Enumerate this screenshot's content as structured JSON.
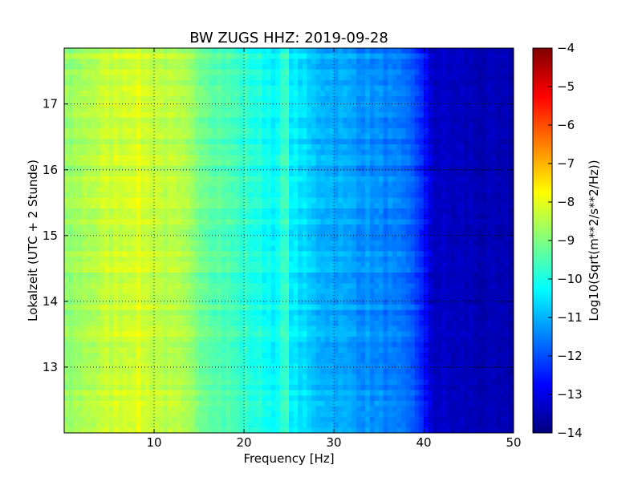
{
  "chart_data": {
    "type": "heatmap",
    "title": "BW ZUGS HHZ: 2019-09-28",
    "xlabel": "Frequency [Hz]",
    "ylabel": "Lokalzeit (UTC + 2 Stunde)",
    "xlim": [
      0,
      50
    ],
    "ylim": [
      17.85,
      12.0
    ],
    "y_inverted": true,
    "grid": true,
    "xticks": [
      10,
      20,
      30,
      40,
      50
    ],
    "yticks": [
      13,
      14,
      15,
      16,
      17
    ],
    "colorbar": {
      "label": "Log10(Sqrt(m**2/s**2/Hz))",
      "min": -14,
      "max": -4,
      "ticks": [
        -14,
        -13,
        -12,
        -11,
        -10,
        -9,
        -8,
        -7,
        -6,
        -5,
        -4
      ],
      "colormap": "jet"
    },
    "profile_freq_hz": [
      0,
      2,
      5,
      8,
      10,
      13,
      16,
      20,
      24,
      25,
      28,
      32,
      36,
      39,
      40,
      41,
      50
    ],
    "profile_log10_amplitude": [
      -8.9,
      -8.6,
      -8.3,
      -8.1,
      -8.3,
      -8.6,
      -9.2,
      -9.8,
      -10.3,
      -10.3,
      -10.9,
      -11.2,
      -11.5,
      -11.9,
      -12.6,
      -13.3,
      -13.6
    ]
  }
}
